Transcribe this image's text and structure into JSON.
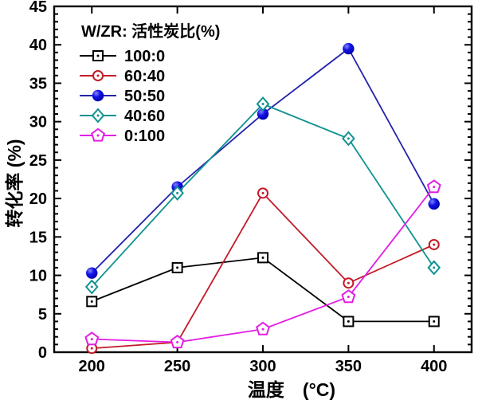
{
  "chart_data": {
    "type": "line",
    "title": "",
    "xlabel": "温度　(°C)",
    "ylabel": "转化率 (%)",
    "legend_title": "W/ZR: 活性炭比(%)",
    "legend_position": "top-left-inside",
    "grid": false,
    "x": [
      200,
      250,
      300,
      350,
      400
    ],
    "xlim": [
      178,
      422
    ],
    "ylim": [
      0,
      45
    ],
    "x_ticks": [
      200,
      250,
      300,
      350,
      400
    ],
    "y_ticks": [
      0,
      5,
      10,
      15,
      20,
      25,
      30,
      35,
      40,
      45
    ],
    "y_minor_step": 1,
    "series": [
      {
        "name": "100:0",
        "color": "#000000",
        "marker": "square-open",
        "values": [
          6.6,
          11.0,
          12.3,
          4.0,
          4.0
        ]
      },
      {
        "name": "60:40",
        "color": "#C41A28",
        "marker": "circle-open",
        "values": [
          0.5,
          1.3,
          20.7,
          9.0,
          14.0
        ]
      },
      {
        "name": "50:50",
        "color": "#2222AD",
        "marker": "circle-filled",
        "marker_fill": "#1212E6",
        "values": [
          10.3,
          21.5,
          31.0,
          39.5,
          19.3
        ]
      },
      {
        "name": "40:60",
        "color": "#0F9290",
        "marker": "diamond-open",
        "values": [
          8.5,
          20.7,
          32.3,
          27.8,
          11.0
        ]
      },
      {
        "name": "0:100",
        "color": "#E31FE3",
        "marker": "pentagon-open",
        "values": [
          1.7,
          1.3,
          3.0,
          7.2,
          21.5
        ]
      }
    ]
  }
}
